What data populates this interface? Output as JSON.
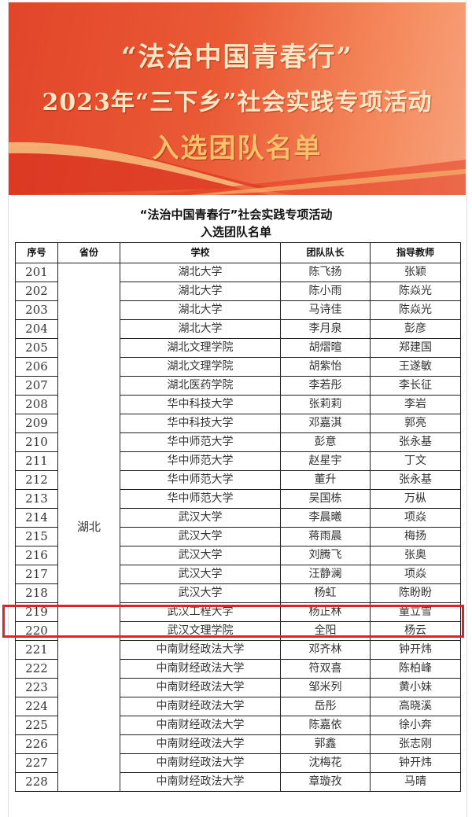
{
  "banner": {
    "line1": "“法治中国青春行”",
    "line2": "2023年“三下乡”社会实践专项活动",
    "line3": "入选团队名单",
    "colors": {
      "background": "#e2452a",
      "text": "#fde6c4",
      "accent": "#f7c06a"
    }
  },
  "document": {
    "title_line1": "“法治中国青春行”社会实践专项活动",
    "title_line2": "入选团队名单"
  },
  "table": {
    "headers": [
      "序号",
      "省份",
      "学校",
      "团队队长",
      "指导教师"
    ],
    "province": "湖北",
    "highlight_color": "#e0202a",
    "highlighted_no": "219",
    "rows": [
      {
        "no": "201",
        "school": "湖北大学",
        "leader": "陈飞扬",
        "teacher": "张颖"
      },
      {
        "no": "202",
        "school": "湖北大学",
        "leader": "陈小雨",
        "teacher": "陈焱光"
      },
      {
        "no": "203",
        "school": "湖北大学",
        "leader": "马诗佳",
        "teacher": "陈焱光"
      },
      {
        "no": "204",
        "school": "湖北大学",
        "leader": "李月泉",
        "teacher": "彭彦"
      },
      {
        "no": "205",
        "school": "湖北文理学院",
        "leader": "胡熠暄",
        "teacher": "郑建国"
      },
      {
        "no": "206",
        "school": "湖北文理学院",
        "leader": "胡紫怡",
        "teacher": "王遂敏"
      },
      {
        "no": "207",
        "school": "湖北医药学院",
        "leader": "李若彤",
        "teacher": "李长征"
      },
      {
        "no": "208",
        "school": "华中科技大学",
        "leader": "张莉莉",
        "teacher": "李岩"
      },
      {
        "no": "209",
        "school": "华中科技大学",
        "leader": "邓嘉淇",
        "teacher": "郭亮"
      },
      {
        "no": "210",
        "school": "华中师范大学",
        "leader": "彭意",
        "teacher": "张永基"
      },
      {
        "no": "211",
        "school": "华中师范大学",
        "leader": "赵星宇",
        "teacher": "丁文"
      },
      {
        "no": "212",
        "school": "华中师范大学",
        "leader": "董升",
        "teacher": "张永基"
      },
      {
        "no": "213",
        "school": "华中师范大学",
        "leader": "吴国栋",
        "teacher": "万枞"
      },
      {
        "no": "214",
        "school": "武汉大学",
        "leader": "李晨曦",
        "teacher": "项焱"
      },
      {
        "no": "215",
        "school": "武汉大学",
        "leader": "蒋雨晨",
        "teacher": "梅扬"
      },
      {
        "no": "216",
        "school": "武汉大学",
        "leader": "刘腾飞",
        "teacher": "张奥"
      },
      {
        "no": "217",
        "school": "武汉大学",
        "leader": "汪静澜",
        "teacher": "项焱"
      },
      {
        "no": "218",
        "school": "武汉大学",
        "leader": "杨虹",
        "teacher": "陈盼盼"
      },
      {
        "no": "219",
        "school": "武汉工程大学",
        "leader": "杨正林",
        "teacher": "童立雪"
      },
      {
        "no": "220",
        "school": "武汉文理学院",
        "leader": "全阳",
        "teacher": "杨云"
      },
      {
        "no": "221",
        "school": "中南财经政法大学",
        "leader": "邓齐林",
        "teacher": "钟开炜"
      },
      {
        "no": "222",
        "school": "中南财经政法大学",
        "leader": "符双喜",
        "teacher": "陈柏峰"
      },
      {
        "no": "223",
        "school": "中南财经政法大学",
        "leader": "邹米列",
        "teacher": "黄小妹"
      },
      {
        "no": "224",
        "school": "中南财经政法大学",
        "leader": "岳彤",
        "teacher": "高晓溪"
      },
      {
        "no": "225",
        "school": "中南财经政法大学",
        "leader": "陈嘉依",
        "teacher": "徐小奔"
      },
      {
        "no": "226",
        "school": "中南财经政法大学",
        "leader": "郭鑫",
        "teacher": "张志刚"
      },
      {
        "no": "227",
        "school": "中南财经政法大学",
        "leader": "沈梅花",
        "teacher": "钟开炜"
      },
      {
        "no": "228",
        "school": "中南财经政法大学",
        "leader": "章璇孜",
        "teacher": "马晴"
      }
    ]
  }
}
